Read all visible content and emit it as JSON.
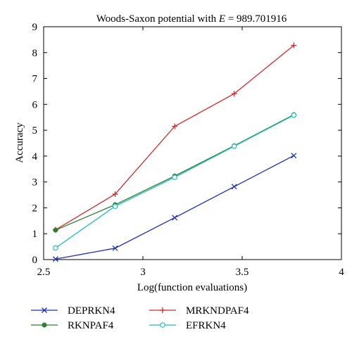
{
  "chart_data": {
    "type": "line",
    "title": "Woods-Saxon potential with E = 989.701916",
    "title_parts": {
      "prefix": "Woods-Saxon potential with ",
      "var": "E",
      "suffix": " = 989.701916"
    },
    "xlabel": "Log(function evaluations)",
    "ylabel": "Accuracy",
    "xlim": [
      2.5,
      4
    ],
    "ylim": [
      0,
      9
    ],
    "xticks": [
      "2.5",
      "3",
      "3.5",
      "4"
    ],
    "yticks": [
      "0",
      "1",
      "2",
      "3",
      "4",
      "5",
      "6",
      "7",
      "8",
      "9"
    ],
    "grid": false,
    "legend_position": "bottom",
    "series": [
      {
        "name": "DEPRKN4",
        "color": "#1f2fbf",
        "marker": "x",
        "x": [
          2.56,
          2.86,
          3.16,
          3.46,
          3.76
        ],
        "y": [
          0.02,
          0.44,
          1.62,
          2.82,
          4.02
        ]
      },
      {
        "name": "MRKNDPAF4",
        "color": "#d42a2a",
        "marker": "plus",
        "x": [
          2.56,
          2.86,
          3.16,
          3.46,
          3.76
        ],
        "y": [
          1.15,
          2.53,
          5.15,
          6.41,
          8.28
        ]
      },
      {
        "name": "RKNPAF4",
        "color": "#2e7d32",
        "marker": "dot",
        "x": [
          2.56,
          2.86,
          3.16,
          3.46,
          3.76
        ],
        "y": [
          1.14,
          2.12,
          3.23,
          4.4,
          5.6
        ]
      },
      {
        "name": "EFRKN4",
        "color": "#1fbfbf",
        "marker": "circle",
        "x": [
          2.56,
          2.86,
          3.16,
          3.46,
          3.76
        ],
        "y": [
          0.45,
          2.06,
          3.18,
          4.38,
          5.58
        ]
      }
    ]
  }
}
